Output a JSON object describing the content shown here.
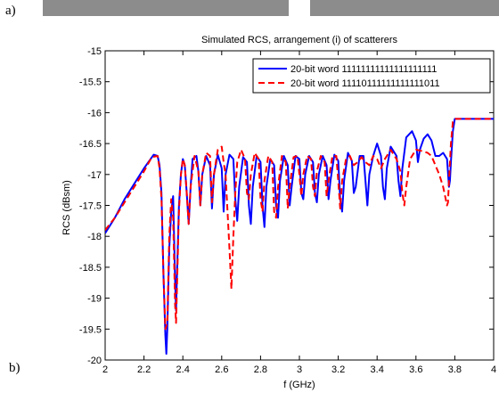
{
  "panel_labels": {
    "top": "a)",
    "bottom": "b)"
  },
  "chart_data": {
    "type": "line",
    "title": "Simulated RCS, arrangement (i) of scatterers",
    "xlabel": "f (GHz)",
    "ylabel": "RCS (dBsm)",
    "xlim": [
      2,
      4
    ],
    "ylim": [
      -20,
      -15
    ],
    "xticks": [
      2,
      2.2,
      2.4,
      2.6,
      2.8,
      3,
      3.2,
      3.4,
      3.6,
      3.8,
      4
    ],
    "xtick_labels": [
      "2",
      "2.2",
      "2.4",
      "2.6",
      "2.8",
      "3",
      "3.2",
      "3.4",
      "3.6",
      "3.8",
      "4"
    ],
    "yticks": [
      -15,
      -15.5,
      -16,
      -16.5,
      -17,
      -17.5,
      -18,
      -18.5,
      -19,
      -19.5,
      -20
    ],
    "ytick_labels": [
      "-15",
      "-15.5",
      "-16",
      "-16.5",
      "-17",
      "-17.5",
      "-18",
      "-18.5",
      "-19",
      "-19.5",
      "-20"
    ],
    "grid": false,
    "legend_position": "top-right",
    "series": [
      {
        "name": "20-bit word 11111111111111111111",
        "color": "#0000ff",
        "style": "solid",
        "points": [
          [
            2.0,
            -17.95
          ],
          [
            2.05,
            -17.7
          ],
          [
            2.1,
            -17.4
          ],
          [
            2.15,
            -17.15
          ],
          [
            2.2,
            -16.9
          ],
          [
            2.25,
            -16.68
          ],
          [
            2.27,
            -16.7
          ],
          [
            2.28,
            -16.85
          ],
          [
            2.29,
            -17.3
          ],
          [
            2.3,
            -18.6
          ],
          [
            2.31,
            -19.6
          ],
          [
            2.315,
            -19.9
          ],
          [
            2.32,
            -19.5
          ],
          [
            2.33,
            -18.2
          ],
          [
            2.34,
            -17.6
          ],
          [
            2.35,
            -17.35
          ],
          [
            2.36,
            -18.7
          ],
          [
            2.365,
            -19.2
          ],
          [
            2.37,
            -18.6
          ],
          [
            2.38,
            -17.5
          ],
          [
            2.39,
            -17.0
          ],
          [
            2.4,
            -16.75
          ],
          [
            2.41,
            -16.85
          ],
          [
            2.42,
            -17.3
          ],
          [
            2.43,
            -17.8
          ],
          [
            2.44,
            -17.2
          ],
          [
            2.45,
            -16.75
          ],
          [
            2.47,
            -16.7
          ],
          [
            2.48,
            -16.95
          ],
          [
            2.49,
            -17.5
          ],
          [
            2.5,
            -17.0
          ],
          [
            2.52,
            -16.7
          ],
          [
            2.54,
            -16.85
          ],
          [
            2.55,
            -17.55
          ],
          [
            2.56,
            -17.0
          ],
          [
            2.58,
            -16.68
          ],
          [
            2.6,
            -16.9
          ],
          [
            2.61,
            -17.6
          ],
          [
            2.62,
            -17.0
          ],
          [
            2.64,
            -16.68
          ],
          [
            2.66,
            -16.75
          ],
          [
            2.67,
            -17.4
          ],
          [
            2.68,
            -17.75
          ],
          [
            2.69,
            -17.2
          ],
          [
            2.71,
            -16.72
          ],
          [
            2.73,
            -16.8
          ],
          [
            2.74,
            -17.5
          ],
          [
            2.75,
            -17.8
          ],
          [
            2.76,
            -17.2
          ],
          [
            2.78,
            -16.7
          ],
          [
            2.8,
            -16.8
          ],
          [
            2.81,
            -17.5
          ],
          [
            2.82,
            -17.85
          ],
          [
            2.83,
            -17.2
          ],
          [
            2.85,
            -16.75
          ],
          [
            2.87,
            -16.85
          ],
          [
            2.88,
            -17.5
          ],
          [
            2.89,
            -17.7
          ],
          [
            2.9,
            -17.1
          ],
          [
            2.92,
            -16.7
          ],
          [
            2.94,
            -16.85
          ],
          [
            2.95,
            -17.5
          ],
          [
            2.96,
            -17.2
          ],
          [
            2.98,
            -16.7
          ],
          [
            3.0,
            -16.75
          ],
          [
            3.01,
            -17.3
          ],
          [
            3.02,
            -17.4
          ],
          [
            3.03,
            -17.0
          ],
          [
            3.05,
            -16.7
          ],
          [
            3.07,
            -16.8
          ],
          [
            3.08,
            -17.3
          ],
          [
            3.09,
            -17.45
          ],
          [
            3.1,
            -17.0
          ],
          [
            3.12,
            -16.7
          ],
          [
            3.14,
            -16.85
          ],
          [
            3.15,
            -17.4
          ],
          [
            3.16,
            -17.1
          ],
          [
            3.18,
            -16.68
          ],
          [
            3.2,
            -16.78
          ],
          [
            3.21,
            -17.4
          ],
          [
            3.22,
            -17.6
          ],
          [
            3.23,
            -17.1
          ],
          [
            3.25,
            -16.65
          ],
          [
            3.27,
            -16.78
          ],
          [
            3.28,
            -17.3
          ],
          [
            3.29,
            -17.2
          ],
          [
            3.31,
            -16.7
          ],
          [
            3.33,
            -16.7
          ],
          [
            3.34,
            -17.1
          ],
          [
            3.35,
            -17.5
          ],
          [
            3.36,
            -17.0
          ],
          [
            3.38,
            -16.7
          ],
          [
            3.4,
            -16.5
          ],
          [
            3.42,
            -16.7
          ],
          [
            3.43,
            -17.2
          ],
          [
            3.44,
            -17.4
          ],
          [
            3.45,
            -16.9
          ],
          [
            3.47,
            -16.55
          ],
          [
            3.5,
            -16.7
          ],
          [
            3.51,
            -17.1
          ],
          [
            3.52,
            -17.35
          ],
          [
            3.53,
            -16.9
          ],
          [
            3.55,
            -16.4
          ],
          [
            3.58,
            -16.3
          ],
          [
            3.6,
            -16.45
          ],
          [
            3.61,
            -16.8
          ],
          [
            3.62,
            -16.6
          ],
          [
            3.64,
            -16.42
          ],
          [
            3.66,
            -16.35
          ],
          [
            3.68,
            -16.45
          ],
          [
            3.7,
            -16.7
          ],
          [
            3.72,
            -16.7
          ],
          [
            3.74,
            -16.65
          ],
          [
            3.76,
            -16.75
          ],
          [
            3.77,
            -17.2
          ],
          [
            3.775,
            -17.1
          ],
          [
            3.78,
            -16.8
          ],
          [
            3.79,
            -16.3
          ],
          [
            3.8,
            -16.1
          ],
          [
            3.85,
            -16.1
          ],
          [
            3.9,
            -16.1
          ],
          [
            4.0,
            -16.1
          ]
        ]
      },
      {
        "name": "20-bit word 11110111111111111011",
        "color": "#ff0000",
        "style": "dashed",
        "points": [
          [
            2.0,
            -17.9
          ],
          [
            2.05,
            -17.7
          ],
          [
            2.1,
            -17.45
          ],
          [
            2.15,
            -17.2
          ],
          [
            2.2,
            -16.95
          ],
          [
            2.24,
            -16.72
          ],
          [
            2.27,
            -16.7
          ],
          [
            2.28,
            -16.9
          ],
          [
            2.29,
            -17.4
          ],
          [
            2.3,
            -18.6
          ],
          [
            2.31,
            -19.5
          ],
          [
            2.32,
            -19.4
          ],
          [
            2.33,
            -18.0
          ],
          [
            2.34,
            -17.4
          ],
          [
            2.35,
            -17.7
          ],
          [
            2.36,
            -19.1
          ],
          [
            2.365,
            -19.4
          ],
          [
            2.37,
            -18.8
          ],
          [
            2.38,
            -17.6
          ],
          [
            2.39,
            -17.0
          ],
          [
            2.4,
            -16.75
          ],
          [
            2.41,
            -16.85
          ],
          [
            2.42,
            -17.3
          ],
          [
            2.43,
            -17.8
          ],
          [
            2.44,
            -17.2
          ],
          [
            2.46,
            -16.7
          ],
          [
            2.48,
            -16.95
          ],
          [
            2.49,
            -17.5
          ],
          [
            2.5,
            -17.0
          ],
          [
            2.52,
            -16.65
          ],
          [
            2.54,
            -16.7
          ],
          [
            2.55,
            -17.45
          ],
          [
            2.56,
            -17.0
          ],
          [
            2.58,
            -16.6
          ],
          [
            2.6,
            -16.55
          ],
          [
            2.61,
            -16.8
          ],
          [
            2.62,
            -17.0
          ],
          [
            2.63,
            -17.6
          ],
          [
            2.64,
            -18.2
          ],
          [
            2.65,
            -18.85
          ],
          [
            2.66,
            -18.0
          ],
          [
            2.67,
            -17.3
          ],
          [
            2.68,
            -16.8
          ],
          [
            2.7,
            -16.6
          ],
          [
            2.72,
            -16.75
          ],
          [
            2.73,
            -17.3
          ],
          [
            2.74,
            -17.4
          ],
          [
            2.75,
            -17.0
          ],
          [
            2.77,
            -16.65
          ],
          [
            2.79,
            -16.75
          ],
          [
            2.8,
            -17.4
          ],
          [
            2.81,
            -17.6
          ],
          [
            2.82,
            -17.1
          ],
          [
            2.84,
            -16.7
          ],
          [
            2.86,
            -16.8
          ],
          [
            2.87,
            -17.6
          ],
          [
            2.88,
            -17.7
          ],
          [
            2.89,
            -17.2
          ],
          [
            2.91,
            -16.7
          ],
          [
            2.93,
            -16.8
          ],
          [
            2.94,
            -17.55
          ],
          [
            2.95,
            -17.2
          ],
          [
            2.97,
            -16.72
          ],
          [
            2.99,
            -16.7
          ],
          [
            3.0,
            -17.0
          ],
          [
            3.01,
            -17.35
          ],
          [
            3.02,
            -17.0
          ],
          [
            3.04,
            -16.7
          ],
          [
            3.06,
            -16.75
          ],
          [
            3.07,
            -17.2
          ],
          [
            3.08,
            -17.35
          ],
          [
            3.09,
            -16.95
          ],
          [
            3.11,
            -16.7
          ],
          [
            3.13,
            -16.8
          ],
          [
            3.14,
            -17.35
          ],
          [
            3.15,
            -17.1
          ],
          [
            3.17,
            -16.7
          ],
          [
            3.19,
            -16.7
          ],
          [
            3.2,
            -17.1
          ],
          [
            3.21,
            -17.55
          ],
          [
            3.22,
            -17.1
          ],
          [
            3.24,
            -16.75
          ],
          [
            3.26,
            -16.7
          ],
          [
            3.28,
            -16.85
          ],
          [
            3.3,
            -16.8
          ],
          [
            3.32,
            -16.72
          ],
          [
            3.34,
            -16.8
          ],
          [
            3.36,
            -16.85
          ],
          [
            3.38,
            -16.7
          ],
          [
            3.4,
            -16.75
          ],
          [
            3.42,
            -16.9
          ],
          [
            3.44,
            -16.75
          ],
          [
            3.47,
            -16.6
          ],
          [
            3.5,
            -16.75
          ],
          [
            3.52,
            -16.95
          ],
          [
            3.53,
            -17.3
          ],
          [
            3.54,
            -17.5
          ],
          [
            3.55,
            -17.2
          ],
          [
            3.57,
            -16.75
          ],
          [
            3.6,
            -16.6
          ],
          [
            3.63,
            -16.62
          ],
          [
            3.66,
            -16.65
          ],
          [
            3.68,
            -16.7
          ],
          [
            3.7,
            -16.85
          ],
          [
            3.72,
            -17.0
          ],
          [
            3.74,
            -17.2
          ],
          [
            3.75,
            -17.35
          ],
          [
            3.76,
            -17.5
          ],
          [
            3.765,
            -17.45
          ],
          [
            3.77,
            -17.1
          ],
          [
            3.78,
            -16.5
          ],
          [
            3.79,
            -16.15
          ],
          [
            3.8,
            -16.1
          ],
          [
            3.85,
            -16.1
          ],
          [
            3.9,
            -16.1
          ],
          [
            4.0,
            -16.1
          ]
        ]
      }
    ]
  }
}
